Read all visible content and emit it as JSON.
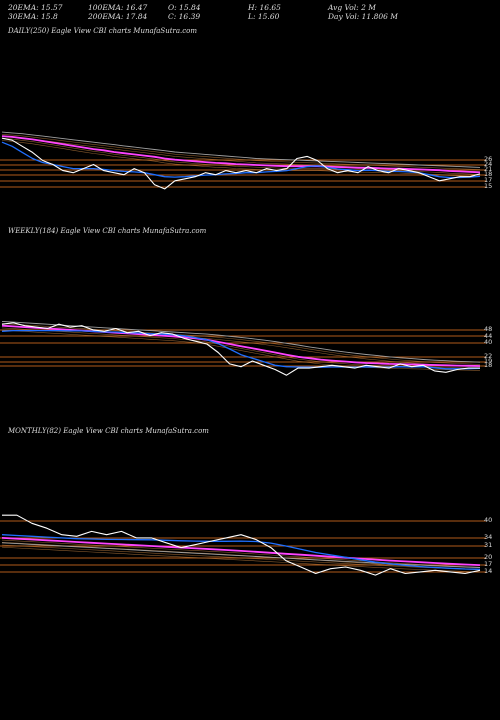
{
  "header": {
    "ema20": "20EMA: 15.57",
    "ema100": "100EMA: 16.47",
    "open": "O: 15.84",
    "high": "H: 16.65",
    "avg_vol": "Avg Vol: 2  M",
    "ema30": "30EMA: 15.8",
    "ema200": "200EMA: 17.84",
    "close": "C: 16.39",
    "low": "L: 15.60",
    "day_vol": "Day Vol: 11.806  M"
  },
  "colors": {
    "background": "#000000",
    "price": "#ffffff",
    "ema_fast": "#1f6fff",
    "ema_slow": "#ff44ff",
    "ema_mid": "#a0a0a0",
    "ema_orange": "#c08040",
    "level_lines": "#b05a1a"
  },
  "chart_data": [
    {
      "type": "line",
      "title": "DAILY(250) Eagle  View  CBI charts MunafaSutra.com",
      "levels": [
        "26",
        "24",
        "21",
        "18",
        "17",
        "15"
      ],
      "series": [
        {
          "role": "price",
          "values": [
            26,
            25.5,
            24,
            22.5,
            20.5,
            19.5,
            18,
            17.5,
            18.5,
            19.5,
            18,
            17.5,
            17,
            18.5,
            17.5,
            14.5,
            13.5,
            15.5,
            16,
            16.5,
            17.5,
            17,
            18,
            17.5,
            18,
            17.5,
            18.5,
            18,
            18.5,
            21,
            21.5,
            20.5,
            18.5,
            17.5,
            18,
            17.5,
            19,
            18,
            17.5,
            18.5,
            18,
            17.5,
            16.5,
            15.5,
            16,
            16.5,
            16.5,
            17.2
          ]
        },
        {
          "role": "ema20",
          "values": [
            25,
            24,
            22.5,
            21,
            20,
            19.5,
            19,
            18.5,
            18.5,
            18.5,
            18.3,
            18,
            17.8,
            17.7,
            17.5,
            17,
            16.5,
            16.4,
            16.5,
            16.7,
            16.9,
            17,
            17.2,
            17.3,
            17.5,
            17.5,
            17.7,
            17.8,
            18,
            18.5,
            19,
            19.2,
            18.8,
            18.4,
            18.2,
            18,
            18.1,
            18,
            17.8,
            17.8,
            17.7,
            17.5,
            17,
            16.5,
            16.3,
            16.3,
            16.4,
            16.6
          ]
        },
        {
          "role": "ema100",
          "values": [
            26.5,
            26.3,
            26,
            25.7,
            25.3,
            24.9,
            24.5,
            24.1,
            23.7,
            23.3,
            23,
            22.6,
            22.3,
            22,
            21.7,
            21.4,
            21,
            20.7,
            20.5,
            20.3,
            20.1,
            19.9,
            19.8,
            19.6,
            19.5,
            19.4,
            19.3,
            19.2,
            19.1,
            19.1,
            19.1,
            19.1,
            19,
            18.9,
            18.8,
            18.7,
            18.7,
            18.6,
            18.5,
            18.5,
            18.4,
            18.3,
            18.2,
            18.1,
            17.9,
            17.8,
            17.7,
            17.6
          ]
        },
        {
          "role": "ema200",
          "values": [
            27.5,
            27.3,
            27.1,
            26.8,
            26.5,
            26.2,
            25.9,
            25.6,
            25.3,
            25,
            24.7,
            24.4,
            24.1,
            23.8,
            23.5,
            23.2,
            22.9,
            22.6,
            22.4,
            22.2,
            22,
            21.8,
            21.6,
            21.4,
            21.2,
            21,
            20.9,
            20.8,
            20.7,
            20.6,
            20.5,
            20.4,
            20.3,
            20.2,
            20.1,
            20,
            19.9,
            19.8,
            19.7,
            19.6,
            19.5,
            19.4,
            19.3,
            19.2,
            19.1,
            19,
            18.9,
            18.8
          ]
        }
      ]
    },
    {
      "type": "line",
      "title": "WEEKLY(184) Eagle  View  CBI charts MunafaSutra.com",
      "levels": [
        "48",
        "44",
        "40",
        "22",
        "19",
        "18"
      ],
      "series": [
        {
          "role": "price",
          "values": [
            50,
            51,
            49,
            48,
            47,
            50,
            48,
            49,
            46,
            45,
            47,
            44,
            45,
            42,
            44,
            43,
            40,
            38,
            36,
            30,
            22,
            20,
            24,
            21,
            18,
            14,
            19,
            19,
            20,
            21,
            20,
            19,
            21,
            20,
            19,
            22,
            20,
            21,
            17,
            16,
            18,
            19,
            19
          ]
        },
        {
          "role": "ema20",
          "values": [
            45,
            45.5,
            45.5,
            45.5,
            45.5,
            45.5,
            45.3,
            45.3,
            45,
            44.5,
            44.5,
            44,
            43.8,
            43.3,
            43,
            42.6,
            41.8,
            40.5,
            39,
            36.3,
            32.5,
            28.5,
            26,
            23.5,
            21,
            20,
            19.8,
            19.6,
            19.6,
            19.8,
            19.8,
            19.6,
            19.9,
            19.8,
            19.6,
            20,
            19.8,
            20,
            19.2,
            18.5,
            18.5,
            18.6,
            18.8
          ]
        },
        {
          "role": "ema100",
          "values": [
            49,
            48.5,
            48,
            47.5,
            47,
            46.5,
            46,
            45.5,
            45,
            44.5,
            44,
            43.5,
            43,
            42.5,
            42,
            41.5,
            40.8,
            40,
            39,
            37.5,
            36,
            34.5,
            33,
            31.5,
            30,
            28.5,
            27,
            26,
            25,
            24.3,
            23.7,
            23.1,
            22.6,
            22.3,
            22,
            21.8,
            21.6,
            21.4,
            21.2,
            21,
            20.8,
            20.6,
            20.5
          ]
        },
        {
          "role": "ema200",
          "values": [
            52,
            51.5,
            51,
            50.5,
            50,
            49.5,
            49,
            48.5,
            48,
            47.5,
            47,
            46.5,
            46,
            45.5,
            45,
            44.5,
            44,
            43.5,
            43,
            42.3,
            41.5,
            40.7,
            39.8,
            38.8,
            37.7,
            36.5,
            35.3,
            34,
            32.8,
            31.6,
            30.5,
            29.5,
            28.6,
            27.8,
            27,
            26.3,
            25.7,
            25.1,
            24.6,
            24.2,
            23.8,
            23.5,
            23.2
          ]
        }
      ]
    },
    {
      "type": "line",
      "title": "MONTHLY(82) Eagle  View  CBI charts MunafaSutra.com",
      "levels": [
        "40",
        "34",
        "31",
        "20",
        "17",
        "14"
      ],
      "series": [
        {
          "role": "price",
          "values": [
            50,
            50,
            45,
            42,
            38,
            37,
            40,
            38,
            40,
            36,
            36,
            33,
            30,
            32,
            34,
            36,
            38,
            35,
            30,
            22,
            18,
            14,
            17,
            18,
            16,
            13,
            17,
            14,
            15,
            16,
            15,
            14,
            16
          ]
        },
        {
          "role": "ema20",
          "values": [
            38,
            37.5,
            37,
            36.5,
            36,
            35.5,
            35.3,
            35.1,
            35,
            34.9,
            34.8,
            34.5,
            34.2,
            34,
            33.9,
            33.9,
            34,
            33.8,
            32.8,
            31,
            29,
            27,
            25.5,
            24,
            22.5,
            21,
            20,
            19,
            18.3,
            17.7,
            17.2,
            16.8,
            16.6
          ]
        },
        {
          "role": "ema100",
          "values": [
            36,
            35.5,
            35,
            34.5,
            34,
            33.5,
            33,
            32.5,
            32,
            31.5,
            31,
            30.5,
            30,
            29.5,
            29,
            28.5,
            28,
            27.4,
            26.8,
            26.2,
            25.6,
            25,
            24.4,
            23.8,
            23.2,
            22.6,
            22,
            21.5,
            21,
            20.5,
            20,
            19.6,
            19.2
          ]
        },
        {
          "role": "ema200",
          "values": [
            33,
            32.5,
            32,
            31.5,
            31,
            30.5,
            30,
            29.5,
            29,
            28.5,
            28,
            27.5,
            27,
            26.5,
            26,
            25.5,
            25,
            24.5,
            24,
            23.5,
            23,
            22.5,
            22,
            21.5,
            21,
            20.5,
            20,
            19.6,
            19.2,
            18.8,
            18.4,
            18,
            17.7
          ]
        }
      ]
    }
  ]
}
